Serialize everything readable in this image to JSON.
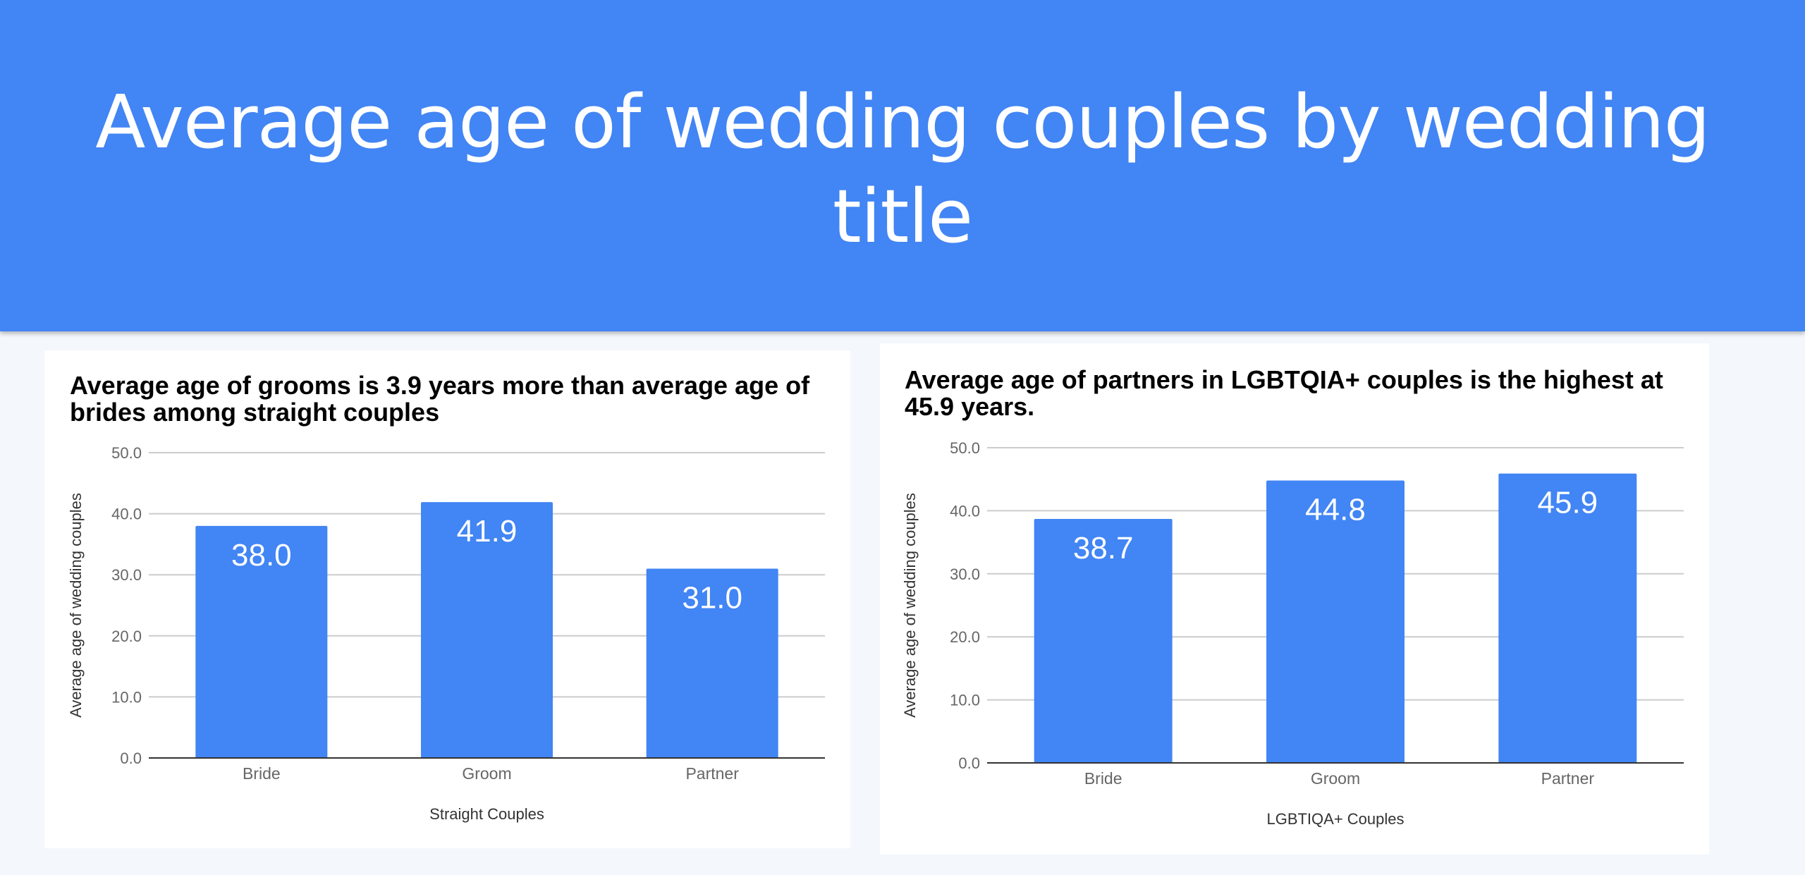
{
  "page": {
    "title": "Average age of wedding couples by wedding title",
    "bar_color": "#4285f4",
    "header_color": "#4285f4"
  },
  "chart_data": [
    {
      "type": "bar",
      "title": "Average age of grooms is 3.9 years more than average age of brides among straight couples",
      "categories": [
        "Bride",
        "Groom",
        "Partner"
      ],
      "values": [
        38.0,
        41.9,
        31.0
      ],
      "data_labels": [
        "38.0",
        "41.9",
        "31.0"
      ],
      "xlabel": "Straight Couples",
      "ylabel": "Average age of wedding couples",
      "ylim": [
        0,
        50
      ],
      "yticks": [
        "0.0",
        "10.0",
        "20.0",
        "30.0",
        "40.0",
        "50.0"
      ],
      "grid": true
    },
    {
      "type": "bar",
      "title": "Average age of partners in LGBTQIA+ couples is the highest at 45.9 years.",
      "categories": [
        "Bride",
        "Groom",
        "Partner"
      ],
      "values": [
        38.7,
        44.8,
        45.9
      ],
      "data_labels": [
        "38.7",
        "44.8",
        "45.9"
      ],
      "xlabel": "LGBTIQA+ Couples",
      "ylabel": "Average age of wedding couples",
      "ylim": [
        0,
        50
      ],
      "yticks": [
        "0.0",
        "10.0",
        "20.0",
        "30.0",
        "40.0",
        "50.0"
      ],
      "grid": true
    }
  ]
}
